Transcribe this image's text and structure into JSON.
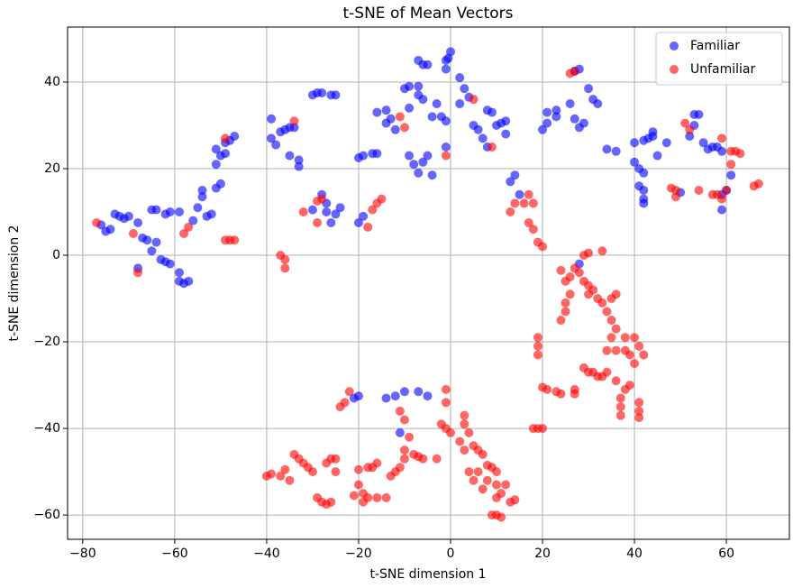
{
  "chart_data": {
    "type": "scatter",
    "title": "t-SNE of Mean Vectors",
    "x_label": "t-SNE dimension 1",
    "y_label": "t-SNE dimension 2",
    "xlim": [
      -83.3,
      73.7
    ],
    "ylim": [
      -65.6,
      52.7
    ],
    "xticks": [
      {
        "value": -80,
        "label": "−80"
      },
      {
        "value": -60,
        "label": "−60"
      },
      {
        "value": -40,
        "label": "−40"
      },
      {
        "value": -20,
        "label": "−20"
      },
      0,
      20,
      40,
      60
    ],
    "yticks": [
      {
        "value": -60,
        "label": "−60"
      },
      {
        "value": -40,
        "label": "−40"
      },
      {
        "value": -20,
        "label": "−20"
      },
      0,
      20,
      40
    ],
    "grid": true,
    "legend": "upper right",
    "alpha": 0.6,
    "series": [
      {
        "name": "Familiar",
        "color": "#0000ff",
        "x": [
          -76,
          -75,
          -74,
          -73,
          -72,
          -71,
          -70,
          -68,
          -68,
          -67,
          -66,
          -65,
          -64,
          -65,
          -64,
          -62,
          -61,
          -59,
          -63,
          -62,
          -61,
          -59,
          -59,
          -58,
          -57,
          -56,
          -55,
          -54,
          -54,
          -53,
          -52,
          -51,
          -50,
          -51,
          -51,
          -50,
          -49,
          -48,
          -47,
          -49,
          -39,
          -39,
          -38,
          -37,
          -36,
          -35,
          -34,
          -35,
          -33,
          -33,
          -30,
          -29,
          -28,
          -26,
          -25,
          -28,
          -27,
          -27,
          -26,
          -25,
          -24,
          -30,
          -20,
          -19,
          -20,
          -19,
          -17,
          -16,
          -16,
          -14,
          -14,
          -13,
          -12,
          -10,
          -9,
          -9,
          -7,
          -7,
          -6,
          -7,
          -6,
          -5,
          -3,
          -4,
          -2,
          -1,
          -1,
          -1,
          -1,
          0,
          -0.5,
          2,
          3,
          4,
          2,
          5,
          6,
          7,
          8,
          8,
          9,
          10,
          11,
          12,
          12,
          13,
          14,
          15,
          -9,
          -8,
          -7,
          -6,
          -5,
          -4,
          20,
          21,
          21,
          23,
          23,
          26,
          27,
          28,
          27,
          28,
          29,
          30,
          31,
          32,
          34,
          36,
          40,
          40,
          41,
          41,
          42,
          42,
          42,
          42,
          42,
          43,
          44,
          44,
          45,
          47,
          52,
          53,
          53,
          54,
          55,
          56,
          57,
          58,
          59,
          59,
          59,
          60,
          61,
          -14,
          -12,
          -11,
          -10,
          -7,
          -5,
          -21,
          -20,
          28,
          50
        ],
        "values": [
          7,
          5.5,
          6,
          9.5,
          9,
          8.5,
          9,
          7.5,
          -3,
          4,
          3.5,
          1,
          3,
          10.5,
          10.5,
          9.5,
          10,
          10,
          -1,
          -1.5,
          -2,
          -4,
          -6,
          -6.5,
          -6,
          8,
          11,
          13.5,
          15,
          9,
          9.5,
          15.5,
          16.5,
          21,
          24.5,
          23,
          26,
          26.5,
          27.5,
          23.5,
          31.5,
          27,
          25.5,
          28.5,
          29,
          29.5,
          29.5,
          23,
          22,
          20.5,
          37,
          37.5,
          37.5,
          37,
          37,
          14,
          12,
          10,
          7.5,
          9.5,
          11,
          10.5,
          7.5,
          9,
          22.5,
          23,
          23.5,
          23.5,
          33,
          33.5,
          30.5,
          31.5,
          29,
          38.5,
          39,
          34,
          39,
          37,
          36,
          45,
          44,
          44,
          35,
          32,
          32,
          31,
          25,
          45,
          43,
          47,
          45.5,
          41,
          38.5,
          36.5,
          35,
          30,
          29,
          27,
          25,
          33.5,
          33,
          30,
          30.5,
          31,
          28,
          17,
          18.5,
          14,
          23,
          21,
          19,
          21.5,
          23,
          18.5,
          29,
          30.5,
          33,
          33.5,
          32,
          35,
          31.5,
          29.5,
          42.5,
          43,
          30.5,
          38.5,
          36,
          35,
          24.5,
          24,
          26,
          21.5,
          20,
          16,
          19,
          15,
          13,
          12,
          26.5,
          27,
          27.5,
          28.5,
          23,
          26,
          27.5,
          30,
          32.5,
          32.5,
          26,
          24.5,
          25,
          25,
          24,
          14,
          10.5,
          15,
          18.5,
          -33,
          -32.5,
          -41,
          -31.5,
          -31.5,
          -32.5,
          -33,
          -32.5,
          -2,
          14.5
        ]
      },
      {
        "name": "Unfamiliar",
        "color": "#ff0000",
        "x": [
          -77,
          -69,
          -68,
          -58,
          -57,
          -49,
          -49,
          -48,
          -47,
          -34,
          -37,
          -36,
          -36,
          -32,
          -29,
          -29,
          -28,
          -18,
          -17,
          -16,
          -15,
          -11,
          -10,
          -1,
          5,
          9,
          13,
          14,
          16,
          17,
          18,
          17,
          18,
          19,
          20,
          26,
          27,
          24,
          25,
          26,
          27,
          26,
          25,
          25,
          24,
          28,
          29,
          30,
          31,
          30,
          32,
          33,
          34,
          35,
          36,
          35,
          34,
          36,
          35,
          36,
          38,
          38,
          39,
          40,
          40,
          41,
          42,
          36,
          37,
          37,
          37,
          38,
          39,
          41,
          41,
          41,
          29,
          30,
          33,
          19,
          19,
          19,
          20,
          21,
          23,
          24,
          27,
          27,
          29,
          30,
          31,
          32,
          33,
          34,
          18,
          19,
          20,
          48,
          49,
          49,
          54,
          57,
          58,
          59,
          60,
          59,
          61,
          61,
          62,
          63,
          66,
          67,
          51,
          52,
          -40,
          -39,
          -37,
          -36,
          -35,
          -34,
          -33,
          -32,
          -31,
          -30,
          -29,
          -28,
          -27,
          -26,
          -27,
          -26,
          -25,
          -25,
          -24,
          -23,
          -22,
          -21,
          -20,
          -19,
          -19,
          -18,
          -17,
          -16,
          -14,
          -20,
          -18,
          -16,
          -13,
          -12,
          -11,
          -10,
          -10,
          -9,
          -8,
          -11,
          -10,
          -7,
          -6,
          -3,
          -2,
          -1,
          -1,
          0,
          2,
          3,
          3,
          4,
          5,
          6,
          7,
          8,
          4,
          5,
          6,
          7,
          8,
          9,
          10,
          10,
          10,
          11,
          9,
          10,
          11,
          12,
          13,
          14,
          3,
          -1
        ],
        "values": [
          7.5,
          5,
          -4,
          5,
          6.5,
          27,
          3.5,
          3.5,
          3.5,
          31,
          0,
          -1,
          -3,
          10,
          12.5,
          7.5,
          13,
          6.5,
          10.5,
          12,
          13,
          32,
          29.5,
          23,
          36,
          25,
          10,
          12,
          12,
          14,
          12,
          7.5,
          6,
          3,
          2,
          42,
          42.5,
          -3.5,
          -6,
          -5,
          -3,
          -9,
          -11,
          -13,
          -15,
          -4,
          -6,
          -7,
          -8,
          -9,
          -10,
          -11,
          -13,
          -15,
          -17,
          -19,
          -22,
          -22,
          -10,
          -9,
          -19,
          -22,
          -23,
          -19,
          -25,
          -21,
          -23,
          -29,
          -33,
          -35,
          -37,
          -31,
          -30,
          -34,
          -36,
          -37.5,
          0,
          0.5,
          1,
          -19,
          -21,
          -23,
          -30.5,
          -31,
          -31.5,
          -32,
          -31,
          -32,
          -26,
          -27,
          -27,
          -28,
          -28,
          -27,
          -40,
          -40,
          -40,
          15.5,
          13.5,
          15,
          15,
          14,
          14,
          13,
          15,
          27,
          21,
          24,
          24,
          23.5,
          16,
          16.5,
          30.5,
          29,
          -51,
          -50.5,
          -51,
          -49.5,
          -52,
          -46,
          -47,
          -48,
          -49,
          -50,
          -56,
          -57,
          -57.5,
          -57,
          -48,
          -47,
          -47,
          -50,
          -35,
          -34,
          -31.5,
          -55.5,
          -53,
          -55,
          -57,
          -56,
          -49,
          -56,
          -56,
          -49.5,
          -49,
          -48,
          -51,
          -50,
          -49,
          -47,
          -45,
          -42,
          -46,
          -36,
          -38,
          -46.5,
          -47,
          -47,
          -39,
          -40,
          -31,
          -41,
          -43,
          -37,
          -39,
          -41,
          -44,
          -45,
          -46,
          -48.5,
          -50,
          -52,
          -50,
          -54,
          -52,
          -49,
          -50,
          -53,
          -56,
          -55,
          -60,
          -60,
          -60.5,
          -53,
          -57,
          -56.5,
          -45,
          -34
        ]
      }
    ]
  }
}
